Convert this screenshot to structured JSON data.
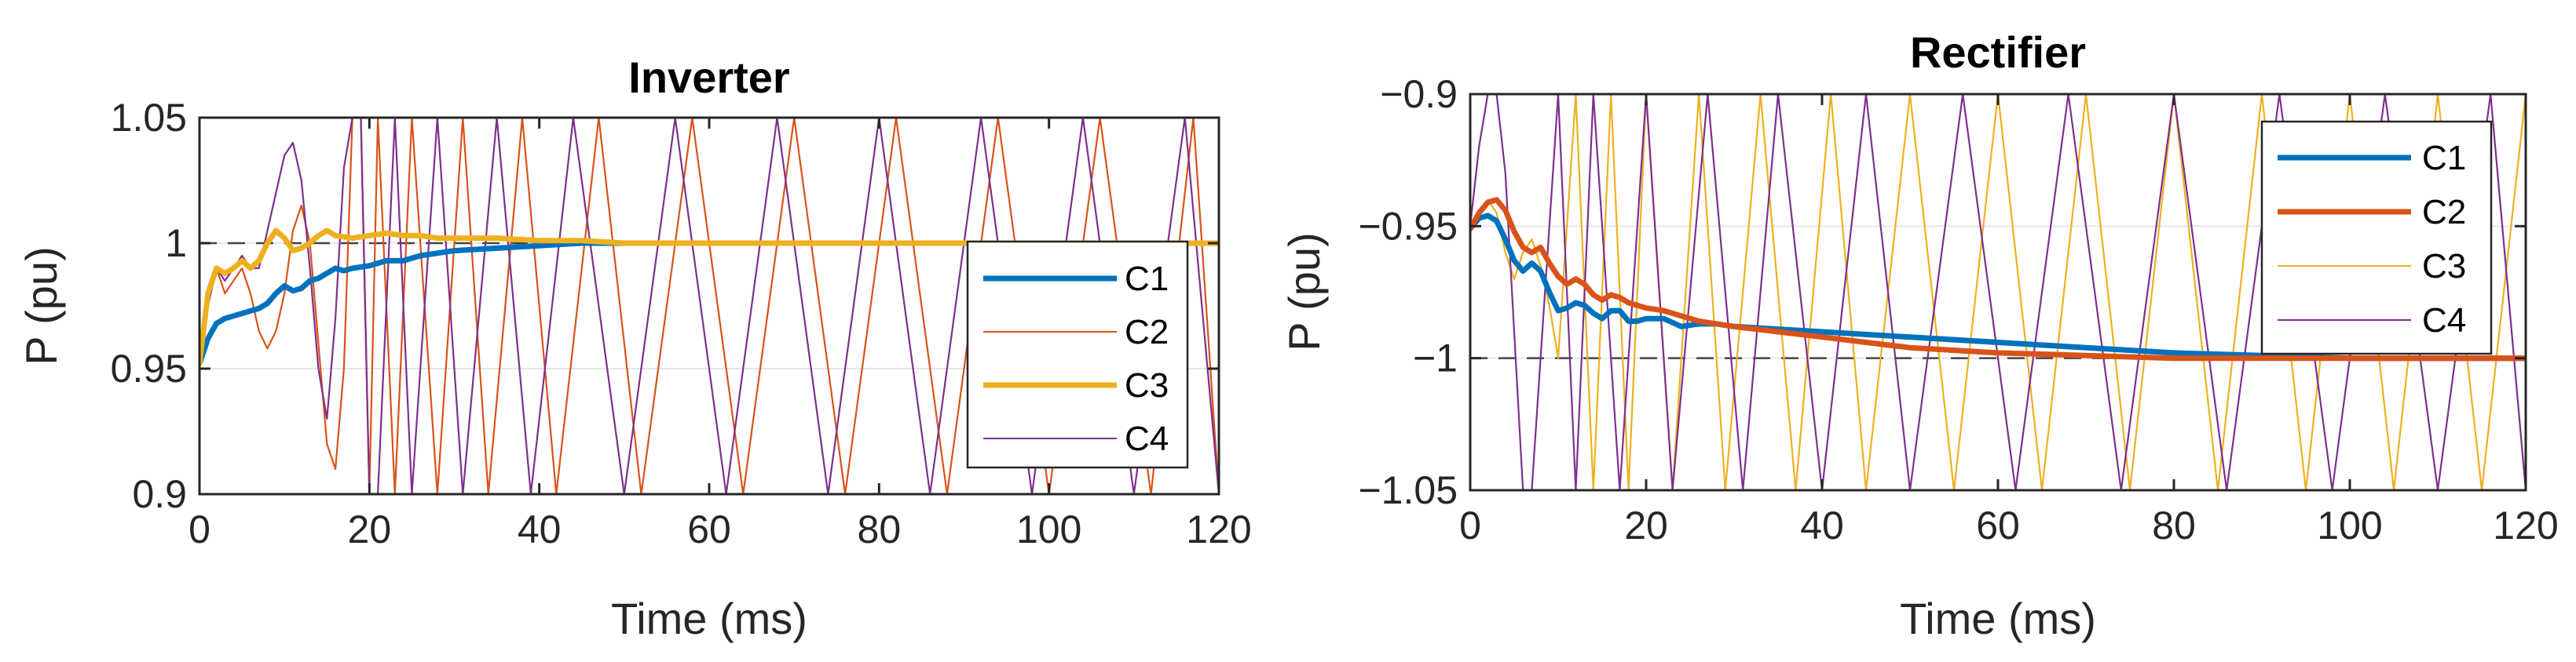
{
  "chart_data": [
    {
      "type": "line",
      "title": "Inverter",
      "xlabel": "Time (ms)",
      "ylabel": "P (pu)",
      "xlim": [
        0,
        120
      ],
      "ylim": [
        0.9,
        1.05
      ],
      "xticks": [
        0,
        20,
        40,
        60,
        80,
        100,
        120
      ],
      "xtick_labels": [
        "0",
        "20",
        "40",
        "60",
        "80",
        "100",
        "120"
      ],
      "yticks": [
        0.9,
        0.95,
        1,
        1.05
      ],
      "ytick_labels": [
        "0.9",
        "0.95",
        "1",
        "1.05"
      ],
      "reference_line": 1,
      "grid": "y",
      "legend_position": "right",
      "series": [
        {
          "name": "C1",
          "color": "#0072BD",
          "weight": "thick",
          "x": [
            0,
            1,
            2,
            3,
            4,
            5,
            6,
            7,
            8,
            9,
            10,
            11,
            12,
            13,
            14,
            15,
            16,
            17,
            18,
            20,
            22,
            24,
            26,
            28,
            30,
            35,
            40,
            45,
            50,
            55,
            60,
            70,
            80,
            90,
            100,
            110,
            120
          ],
          "y": [
            0.952,
            0.962,
            0.968,
            0.97,
            0.971,
            0.972,
            0.973,
            0.974,
            0.976,
            0.98,
            0.983,
            0.981,
            0.982,
            0.985,
            0.986,
            0.988,
            0.99,
            0.989,
            0.99,
            0.991,
            0.993,
            0.993,
            0.995,
            0.996,
            0.997,
            0.998,
            0.999,
            1.0,
            1.0,
            1.0,
            1.0,
            1.0,
            1.0,
            1.0,
            1.0,
            1.0,
            1.0
          ]
        },
        {
          "name": "C2",
          "color": "#D95319",
          "weight": "thin",
          "x": [
            0,
            1,
            2,
            3,
            4,
            5,
            6,
            7,
            8,
            9,
            10,
            11,
            12,
            13,
            14,
            15,
            16,
            17,
            18,
            19,
            20,
            21,
            23,
            25,
            28,
            31,
            34,
            38,
            42,
            47,
            52,
            58,
            64,
            70,
            76,
            82,
            88,
            94,
            100,
            106,
            112,
            117,
            120
          ],
          "y": [
            0.952,
            0.98,
            0.99,
            0.98,
            0.985,
            0.99,
            0.98,
            0.965,
            0.958,
            0.965,
            0.98,
            1.005,
            1.015,
            1.0,
            0.96,
            0.92,
            0.91,
            0.95,
            1.05,
            1.05,
            0.9,
            1.05,
            0.9,
            1.05,
            0.9,
            1.05,
            0.9,
            1.05,
            0.9,
            1.05,
            0.9,
            1.05,
            0.9,
            1.05,
            0.9,
            1.05,
            0.9,
            1.05,
            0.9,
            1.05,
            0.9,
            1.05,
            0.9
          ]
        },
        {
          "name": "C3",
          "color": "#EDB120",
          "weight": "thick",
          "x": [
            0,
            1,
            2,
            3,
            4,
            5,
            6,
            7,
            8,
            9,
            10,
            11,
            12,
            13,
            14,
            15,
            16,
            18,
            20,
            22,
            24,
            26,
            28,
            30,
            35,
            40,
            45,
            50,
            60,
            70,
            80,
            90,
            100,
            110,
            120
          ],
          "y": [
            0.952,
            0.98,
            0.99,
            0.988,
            0.99,
            0.993,
            0.99,
            0.993,
            1.0,
            1.005,
            1.002,
            0.997,
            0.998,
            1.0,
            1.003,
            1.005,
            1.003,
            1.002,
            1.003,
            1.004,
            1.003,
            1.003,
            1.002,
            1.002,
            1.002,
            1.001,
            1.001,
            1.0,
            1.0,
            1.0,
            1.0,
            1.0,
            1.0,
            1.0,
            1.0
          ]
        },
        {
          "name": "C4",
          "color": "#7E2F8E",
          "weight": "thin",
          "x": [
            0,
            1,
            2,
            3,
            4,
            5,
            6,
            7,
            8,
            9,
            10,
            11,
            12,
            13,
            14,
            15,
            16,
            17,
            18,
            19,
            20,
            21,
            23,
            25,
            28,
            31,
            35,
            39,
            44,
            50,
            56,
            62,
            68,
            74,
            80,
            86,
            92,
            98,
            104,
            110,
            116,
            120
          ],
          "y": [
            0.952,
            0.975,
            0.99,
            0.985,
            0.99,
            0.995,
            0.99,
            0.99,
            1.005,
            1.02,
            1.035,
            1.04,
            1.025,
            0.99,
            0.95,
            0.93,
            0.97,
            1.03,
            1.05,
            1.05,
            0.9,
            0.9,
            1.05,
            0.9,
            1.05,
            0.9,
            1.05,
            0.9,
            1.05,
            0.9,
            1.05,
            0.9,
            1.05,
            0.9,
            1.05,
            0.9,
            1.05,
            0.9,
            1.05,
            0.9,
            1.05,
            0.9
          ]
        }
      ]
    },
    {
      "type": "line",
      "title": "Rectifier",
      "xlabel": "Time (ms)",
      "ylabel": "P (pu)",
      "xlim": [
        0,
        120
      ],
      "ylim": [
        -1.05,
        -0.9
      ],
      "xticks": [
        0,
        20,
        40,
        60,
        80,
        100,
        120
      ],
      "xtick_labels": [
        "0",
        "20",
        "40",
        "60",
        "80",
        "100",
        "120"
      ],
      "yticks": [
        -1.05,
        -1,
        -0.95,
        -0.9
      ],
      "ytick_labels": [
        "−1.05",
        "−1",
        "−0.95",
        "−0.9"
      ],
      "reference_line": -1,
      "grid": "y",
      "legend_position": "top-right",
      "series": [
        {
          "name": "C1",
          "color": "#0072BD",
          "weight": "thick",
          "x": [
            0,
            1,
            2,
            3,
            4,
            5,
            6,
            7,
            8,
            9,
            10,
            11,
            12,
            13,
            14,
            15,
            16,
            17,
            18,
            19,
            20,
            22,
            24,
            26,
            28,
            30,
            35,
            40,
            45,
            50,
            60,
            70,
            80,
            90,
            100,
            110,
            120
          ],
          "y": [
            -0.951,
            -0.947,
            -0.946,
            -0.948,
            -0.955,
            -0.963,
            -0.967,
            -0.964,
            -0.967,
            -0.975,
            -0.982,
            -0.981,
            -0.979,
            -0.98,
            -0.983,
            -0.985,
            -0.982,
            -0.982,
            -0.986,
            -0.986,
            -0.985,
            -0.985,
            -0.988,
            -0.987,
            -0.987,
            -0.988,
            -0.989,
            -0.99,
            -0.991,
            -0.992,
            -0.994,
            -0.996,
            -0.998,
            -0.999,
            -1.0,
            -1.0,
            -1.0
          ]
        },
        {
          "name": "C2",
          "color": "#D95319",
          "weight": "thick",
          "x": [
            0,
            1,
            2,
            3,
            4,
            5,
            6,
            7,
            8,
            9,
            10,
            11,
            12,
            13,
            14,
            15,
            16,
            17,
            18,
            19,
            20,
            22,
            24,
            26,
            28,
            30,
            35,
            40,
            45,
            50,
            60,
            70,
            80,
            90,
            100,
            110,
            120
          ],
          "y": [
            -0.951,
            -0.945,
            -0.941,
            -0.94,
            -0.944,
            -0.952,
            -0.958,
            -0.96,
            -0.958,
            -0.964,
            -0.969,
            -0.972,
            -0.97,
            -0.972,
            -0.976,
            -0.978,
            -0.976,
            -0.977,
            -0.979,
            -0.98,
            -0.981,
            -0.982,
            -0.984,
            -0.986,
            -0.987,
            -0.988,
            -0.99,
            -0.992,
            -0.994,
            -0.996,
            -0.998,
            -0.999,
            -1.0,
            -1.0,
            -1.0,
            -1.0,
            -1.0
          ]
        },
        {
          "name": "C3",
          "color": "#EDB120",
          "weight": "thin",
          "x": [
            0,
            1,
            2,
            3,
            4,
            5,
            6,
            7,
            8,
            9,
            10,
            12,
            14,
            16,
            18,
            20,
            23,
            26,
            29,
            33,
            37,
            41,
            45,
            50,
            55,
            60,
            65,
            70,
            75,
            80,
            85,
            90,
            95,
            100,
            105,
            110,
            115,
            120
          ],
          "y": [
            -0.951,
            -0.945,
            -0.94,
            -0.945,
            -0.96,
            -0.97,
            -0.96,
            -0.955,
            -0.965,
            -0.98,
            -1.0,
            -0.9,
            -1.05,
            -0.9,
            -1.05,
            -0.9,
            -1.05,
            -0.9,
            -1.05,
            -0.9,
            -1.05,
            -0.9,
            -1.05,
            -0.9,
            -1.05,
            -0.9,
            -1.05,
            -0.9,
            -1.05,
            -0.9,
            -1.05,
            -0.9,
            -1.05,
            -0.9,
            -1.05,
            -0.9,
            -1.05,
            -0.9
          ]
        },
        {
          "name": "C4",
          "color": "#7E2F8E",
          "weight": "thin",
          "x": [
            0,
            1,
            2,
            3,
            4,
            5,
            6,
            7,
            8,
            9,
            10,
            12,
            14,
            17,
            20,
            23,
            27,
            31,
            35,
            40,
            45,
            50,
            56,
            62,
            68,
            74,
            80,
            86,
            92,
            98,
            104,
            110,
            116,
            120
          ],
          "y": [
            -0.95,
            -0.92,
            -0.9,
            -0.9,
            -0.93,
            -0.99,
            -1.05,
            -1.05,
            -1.0,
            -0.95,
            -0.9,
            -1.05,
            -0.9,
            -1.05,
            -0.9,
            -1.05,
            -0.9,
            -1.05,
            -0.9,
            -1.05,
            -0.9,
            -1.05,
            -0.9,
            -1.05,
            -0.9,
            -1.05,
            -0.9,
            -1.05,
            -0.9,
            -1.05,
            -0.9,
            -1.05,
            -0.9,
            -1.05
          ]
        }
      ]
    }
  ]
}
